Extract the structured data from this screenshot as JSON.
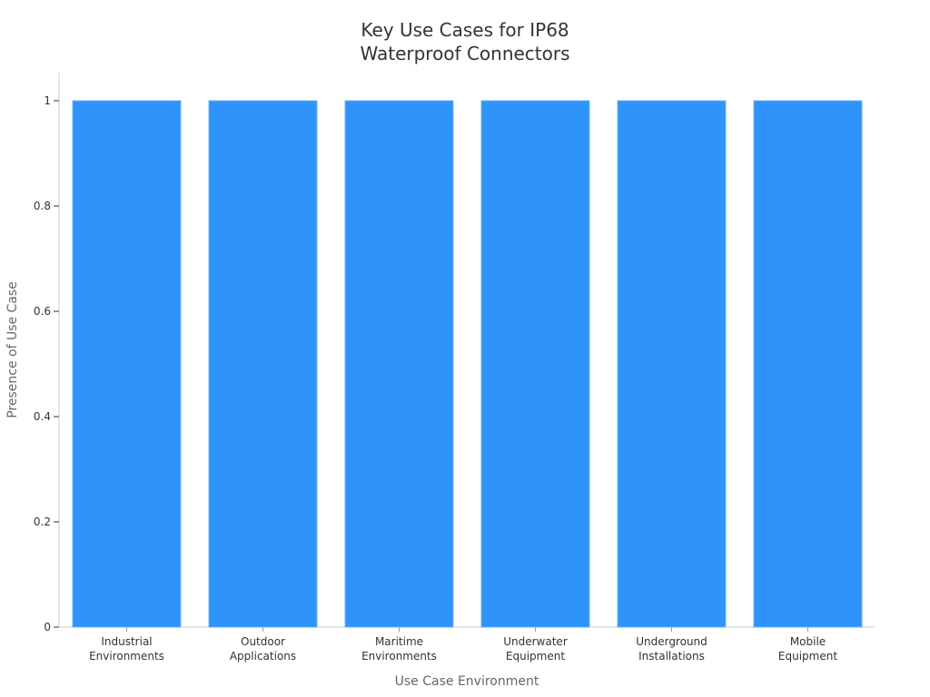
{
  "chart_data": {
    "type": "bar",
    "title": "Key Use Cases for IP68\nWaterproof Connectors",
    "xlabel": "Use Case Environment",
    "ylabel": "Presence of Use Case",
    "categories": [
      [
        "Industrial",
        "Environments"
      ],
      [
        "Outdoor",
        "Applications"
      ],
      [
        "Maritime",
        "Environments"
      ],
      [
        "Underwater",
        "Equipment"
      ],
      [
        "Underground",
        "Installations"
      ],
      [
        "Mobile",
        "Equipment"
      ]
    ],
    "values": [
      1,
      1,
      1,
      1,
      1,
      1
    ],
    "ylim": [
      0,
      1
    ],
    "yticks": [
      "0",
      "0.2",
      "0.4",
      "0.6",
      "0.8",
      "1"
    ],
    "ytick_values": [
      0,
      0.2,
      0.4,
      0.6,
      0.8,
      1
    ],
    "grid": false,
    "bar_color": "#2e93fa",
    "bar_edge_color": "#6ab4f8",
    "axis_color": "#cccccc"
  }
}
